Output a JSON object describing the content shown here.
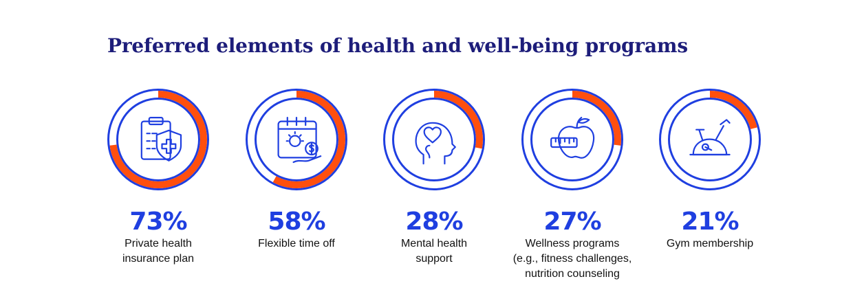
{
  "title": "Preferred elements of health and well-being programs",
  "colors": {
    "ring": "#1f3fe0",
    "fill": "#ff4f0e",
    "title": "#1d1d7a",
    "percent": "#1f3fe0"
  },
  "chart_data": {
    "type": "pie",
    "title": "Preferred elements of health and well-being programs",
    "unit": "%",
    "categories": [
      "Private health insurance plan",
      "Flexible time off",
      "Mental health support",
      "Wellness programs",
      "Gym membership"
    ],
    "values": [
      73,
      58,
      28,
      27,
      21
    ],
    "items": [
      {
        "value": 73,
        "percent_label": "73%",
        "label_lines": [
          "Private health",
          "insurance plan"
        ],
        "icon": "clipboard-health-shield-icon"
      },
      {
        "value": 58,
        "percent_label": "58%",
        "label_lines": [
          "Flexible time off"
        ],
        "icon": "calendar-sun-money-icon"
      },
      {
        "value": 28,
        "percent_label": "28%",
        "label_lines": [
          "Mental health",
          "support"
        ],
        "icon": "head-heart-icon"
      },
      {
        "value": 27,
        "percent_label": "27%",
        "label_lines": [
          "Wellness programs",
          "(e.g., fitness challenges,",
          "nutrition counseling"
        ],
        "icon": "apple-measuring-tape-icon"
      },
      {
        "value": 21,
        "percent_label": "21%",
        "label_lines": [
          "Gym membership"
        ],
        "icon": "exercise-bike-icon"
      }
    ]
  }
}
